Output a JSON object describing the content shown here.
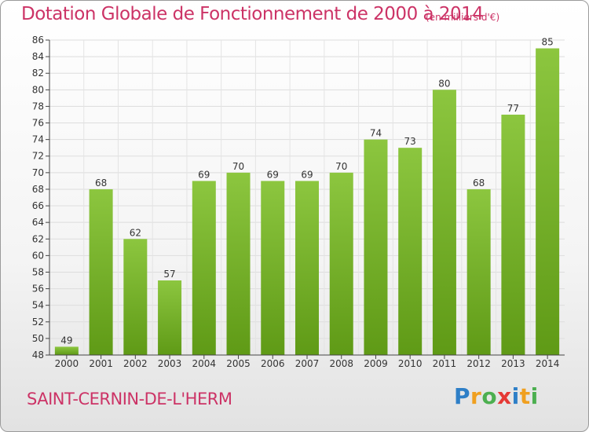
{
  "chart_data": {
    "type": "bar",
    "title": "Dotation Globale de Fonctionnement de 2000 à 2014",
    "subtitle": "(en milliers d'€)",
    "categories": [
      "2000",
      "2001",
      "2002",
      "2003",
      "2004",
      "2005",
      "2006",
      "2007",
      "2008",
      "2009",
      "2010",
      "2011",
      "2012",
      "2013",
      "2014"
    ],
    "values": [
      49,
      68,
      62,
      57,
      69,
      70,
      69,
      69,
      70,
      74,
      73,
      80,
      68,
      77,
      85
    ],
    "xlabel": "",
    "ylabel": "",
    "ylim": [
      48,
      86
    ],
    "ytick_step": 2,
    "grid": true,
    "bar_color": "#8cc63f",
    "bar_color_dark": "#5f9a16"
  },
  "commune_name": "SAINT-CERNIN-DE-L'HERM",
  "logo": {
    "text": "Proxiti",
    "colors": [
      "#2e7fc7",
      "#f0a020",
      "#4caf50",
      "#e53935",
      "#2e7fc7",
      "#f0a020",
      "#4caf50"
    ]
  },
  "colors": {
    "title": "#cc3366"
  }
}
